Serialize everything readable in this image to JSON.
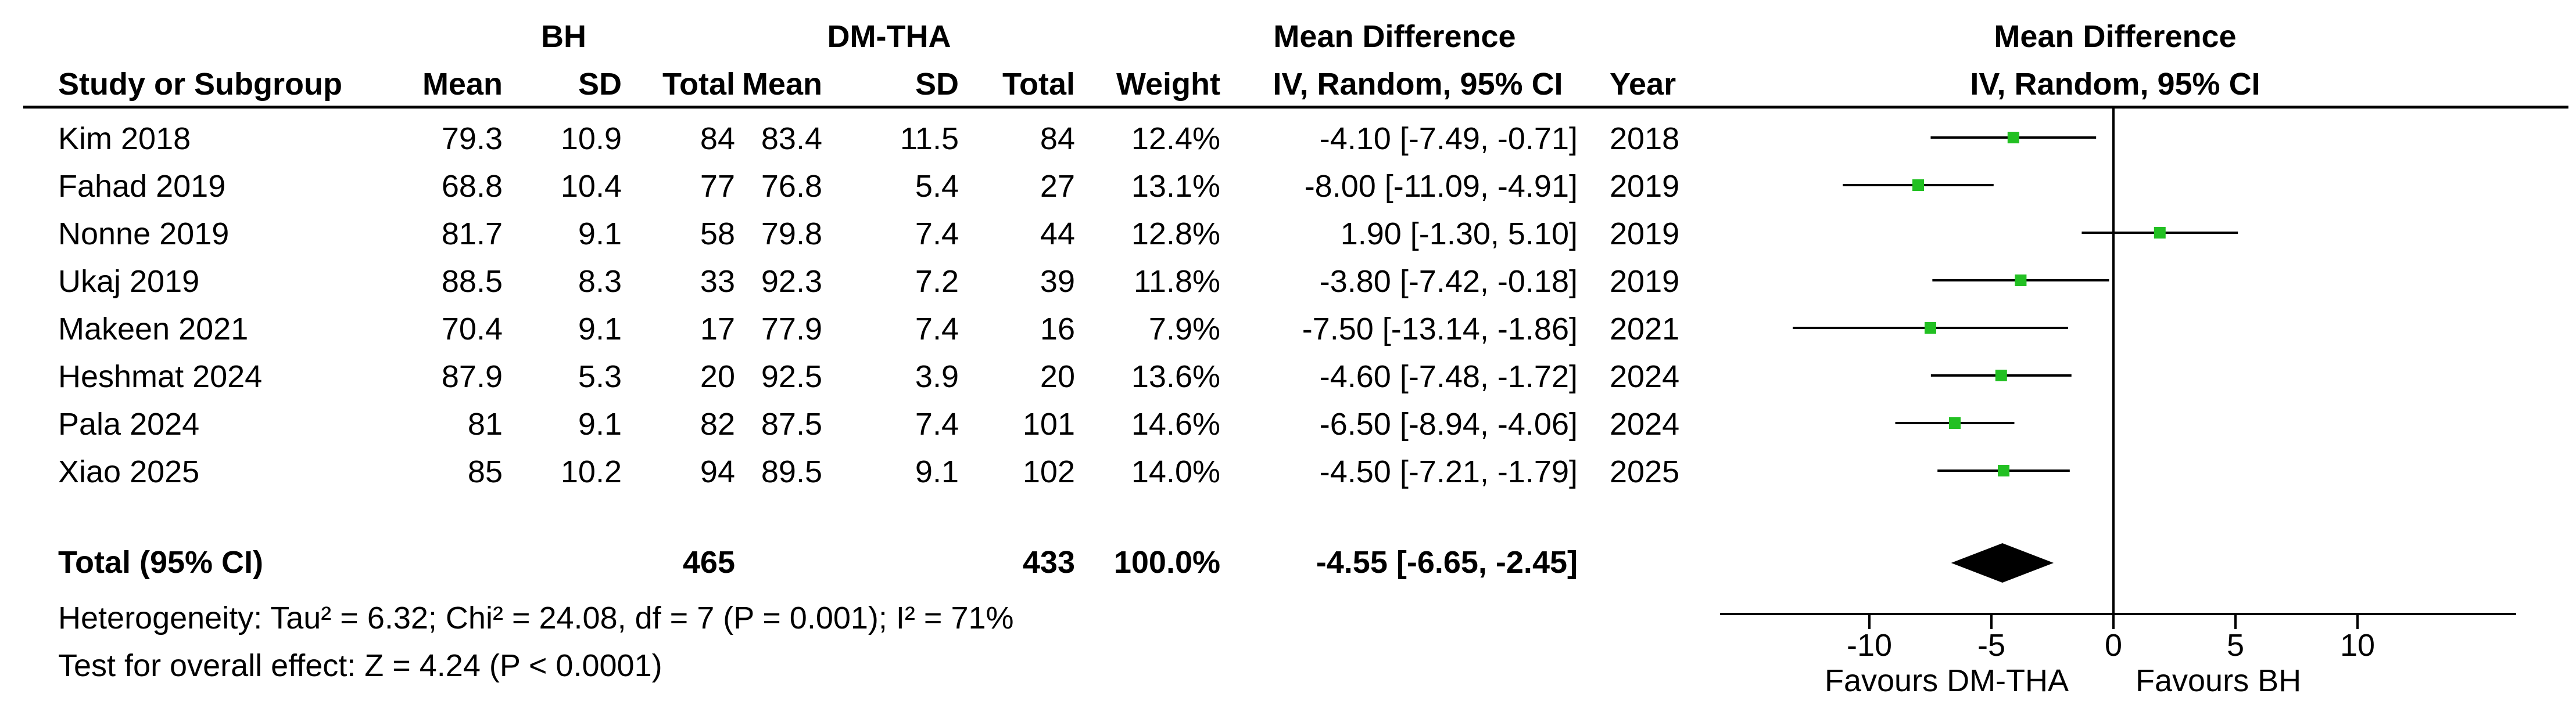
{
  "headers": {
    "group_bh": "BH",
    "group_dm": "DM-THA",
    "md_title_left": "Mean Difference",
    "md_method_left": "IV, Random, 95% CI",
    "md_title_right": "Mean Difference",
    "md_method_right": "IV, Random, 95% CI",
    "study": "Study or Subgroup",
    "mean_bh": "Mean",
    "sd_bh": "SD",
    "total_bh": "Total",
    "mean_dm": "Mean",
    "sd_dm": "SD",
    "total_dm": "Total",
    "weight": "Weight",
    "year": "Year"
  },
  "studies": [
    {
      "name": "Kim 2018",
      "mean_bh": "79.3",
      "sd_bh": "10.9",
      "total_bh": "84",
      "mean_dm": "83.4",
      "sd_dm": "11.5",
      "total_dm": "84",
      "weight": "12.4%",
      "ci_text": "-4.10 [-7.49, -0.71]",
      "year": "2018"
    },
    {
      "name": "Fahad 2019",
      "mean_bh": "68.8",
      "sd_bh": "10.4",
      "total_bh": "77",
      "mean_dm": "76.8",
      "sd_dm": "5.4",
      "total_dm": "27",
      "weight": "13.1%",
      "ci_text": "-8.00 [-11.09, -4.91]",
      "year": "2019"
    },
    {
      "name": "Nonne 2019",
      "mean_bh": "81.7",
      "sd_bh": "9.1",
      "total_bh": "58",
      "mean_dm": "79.8",
      "sd_dm": "7.4",
      "total_dm": "44",
      "weight": "12.8%",
      "ci_text": "1.90 [-1.30, 5.10]",
      "year": "2019"
    },
    {
      "name": "Ukaj 2019",
      "mean_bh": "88.5",
      "sd_bh": "8.3",
      "total_bh": "33",
      "mean_dm": "92.3",
      "sd_dm": "7.2",
      "total_dm": "39",
      "weight": "11.8%",
      "ci_text": "-3.80 [-7.42, -0.18]",
      "year": "2019"
    },
    {
      "name": "Makeen 2021",
      "mean_bh": "70.4",
      "sd_bh": "9.1",
      "total_bh": "17",
      "mean_dm": "77.9",
      "sd_dm": "7.4",
      "total_dm": "16",
      "weight": "7.9%",
      "ci_text": "-7.50 [-13.14, -1.86]",
      "year": "2021"
    },
    {
      "name": "Heshmat 2024",
      "mean_bh": "87.9",
      "sd_bh": "5.3",
      "total_bh": "20",
      "mean_dm": "92.5",
      "sd_dm": "3.9",
      "total_dm": "20",
      "weight": "13.6%",
      "ci_text": "-4.60 [-7.48, -1.72]",
      "year": "2024"
    },
    {
      "name": "Pala 2024",
      "mean_bh": "81",
      "sd_bh": "9.1",
      "total_bh": "82",
      "mean_dm": "87.5",
      "sd_dm": "7.4",
      "total_dm": "101",
      "weight": "14.6%",
      "ci_text": "-6.50 [-8.94, -4.06]",
      "year": "2024"
    },
    {
      "name": "Xiao 2025",
      "mean_bh": "85",
      "sd_bh": "10.2",
      "total_bh": "94",
      "mean_dm": "89.5",
      "sd_dm": "9.1",
      "total_dm": "102",
      "weight": "14.0%",
      "ci_text": "-4.50 [-7.21, -1.79]",
      "year": "2025"
    }
  ],
  "total": {
    "label": "Total (95% CI)",
    "total_bh": "465",
    "total_dm": "433",
    "weight": "100.0%",
    "ci_text": "-4.55 [-6.65, -2.45]"
  },
  "heterogeneity": "Heterogeneity: Tau² = 6.32; Chi² = 24.08, df = 7 (P = 0.001); I² = 71%",
  "overall_effect": "Test for overall effect: Z = 4.24 (P < 0.0001)",
  "favours_left": "Favours DM-THA",
  "favours_right": "Favours BH",
  "colors": {
    "marker": "#22c022",
    "diamond": "#000000",
    "line": "#000000"
  },
  "chart_data": {
    "type": "forest",
    "xlim": [
      -16.5,
      16.5
    ],
    "ticks": [
      -10,
      -5,
      0,
      5,
      10
    ],
    "tick_labels": [
      "-10",
      "-5",
      "0",
      "5",
      "10"
    ],
    "points": [
      {
        "study": "Kim 2018",
        "md": -4.1,
        "lower": -7.49,
        "upper": -0.71,
        "weight": 12.4
      },
      {
        "study": "Fahad 2019",
        "md": -8.0,
        "lower": -11.09,
        "upper": -4.91,
        "weight": 13.1
      },
      {
        "study": "Nonne 2019",
        "md": 1.9,
        "lower": -1.3,
        "upper": 5.1,
        "weight": 12.8
      },
      {
        "study": "Ukaj 2019",
        "md": -3.8,
        "lower": -7.42,
        "upper": -0.18,
        "weight": 11.8
      },
      {
        "study": "Makeen 2021",
        "md": -7.5,
        "lower": -13.14,
        "upper": -1.86,
        "weight": 7.9
      },
      {
        "study": "Heshmat 2024",
        "md": -4.6,
        "lower": -7.48,
        "upper": -1.72,
        "weight": 13.6
      },
      {
        "study": "Pala 2024",
        "md": -6.5,
        "lower": -8.94,
        "upper": -4.06,
        "weight": 14.6
      },
      {
        "study": "Xiao 2025",
        "md": -4.5,
        "lower": -7.21,
        "upper": -1.79,
        "weight": 14.0
      }
    ],
    "pooled": {
      "md": -4.55,
      "lower": -6.65,
      "upper": -2.45
    }
  }
}
